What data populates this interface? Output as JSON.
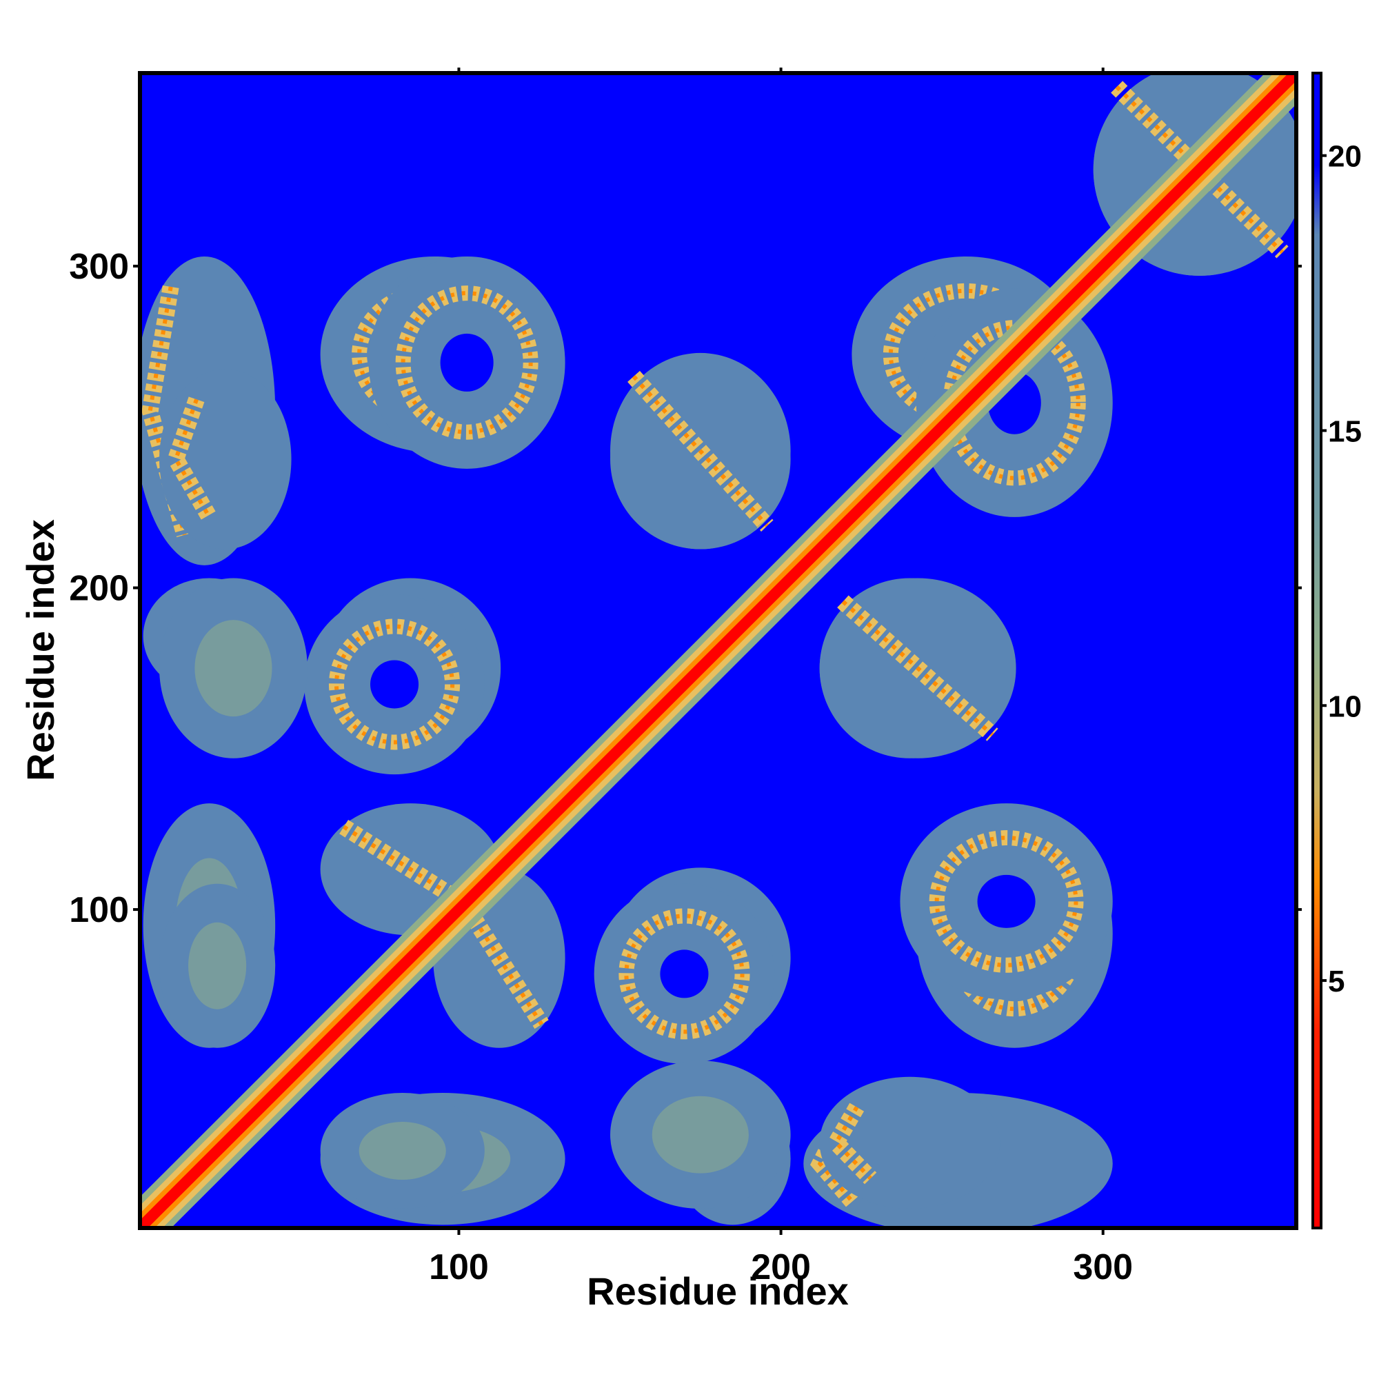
{
  "chart_data": {
    "type": "heatmap",
    "title": "",
    "xlabel": "Residue index",
    "ylabel": "Residue index",
    "xlim": [
      1,
      360
    ],
    "ylim": [
      1,
      360
    ],
    "x_ticks": [
      100,
      200,
      300
    ],
    "y_ticks": [
      100,
      200,
      300
    ],
    "colorbar": {
      "ticks": [
        5,
        10,
        15,
        20
      ],
      "range": [
        0.5,
        21.5
      ],
      "colors": {
        "near": "#ff0000",
        "mid_low": "#ff8c00",
        "mid": "#e8c060",
        "mid_high": "#8fae8a",
        "far_contact": "#5b86b4",
        "no_contact": "#0000ff"
      }
    },
    "diagonal": {
      "from": 1,
      "to": 360,
      "value": 1
    },
    "contact_regions": [
      {
        "x": [
          2,
          40
        ],
        "y": [
          210,
          300
        ],
        "shape": "chevron",
        "value": 16
      },
      {
        "x": [
          60,
          125
        ],
        "y": [
          245,
          300
        ],
        "shape": "ring",
        "value": 16
      },
      {
        "x": [
          150,
          200
        ],
        "y": [
          215,
          265
        ],
        "shape": "band",
        "value": 16
      },
      {
        "x": [
          60,
          110
        ],
        "y": [
          150,
          200
        ],
        "shape": "ring",
        "value": 16
      },
      {
        "x": [
          5,
          40
        ],
        "y": [
          170,
          200
        ],
        "shape": "blob",
        "value": 18
      },
      {
        "x": [
          5,
          40
        ],
        "y": [
          60,
          130
        ],
        "shape": "blob",
        "value": 18
      },
      {
        "x": [
          60,
          110
        ],
        "y": [
          95,
          130
        ],
        "shape": "band",
        "value": 16
      },
      {
        "x": [
          145,
          195
        ],
        "y": [
          55,
          105
        ],
        "shape": "ring",
        "value": 16
      },
      {
        "x": [
          60,
          105
        ],
        "y": [
          10,
          40
        ],
        "shape": "blob",
        "value": 18
      },
      {
        "x": [
          150,
          200
        ],
        "y": [
          10,
          50
        ],
        "shape": "blob",
        "value": 18
      },
      {
        "x": [
          215,
          265
        ],
        "y": [
          10,
          45
        ],
        "shape": "chevron",
        "value": 16
      },
      {
        "x": [
          240,
          300
        ],
        "y": [
          75,
          130
        ],
        "shape": "ring",
        "value": 16
      },
      {
        "x": [
          215,
          270
        ],
        "y": [
          150,
          200
        ],
        "shape": "band",
        "value": 16
      },
      {
        "x": [
          225,
          290
        ],
        "y": [
          245,
          300
        ],
        "shape": "ring",
        "value": 16
      },
      {
        "x": [
          300,
          360
        ],
        "y": [
          300,
          360
        ],
        "shape": "band",
        "value": 14
      }
    ]
  }
}
